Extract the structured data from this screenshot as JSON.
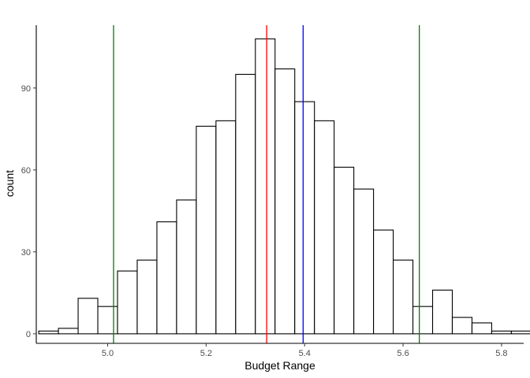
{
  "chart_data": {
    "type": "bar",
    "subtype": "histogram",
    "xlabel": "Budget Range",
    "ylabel": "count",
    "xlim": [
      4.855,
      5.845
    ],
    "ylim": [
      -3.5,
      113
    ],
    "xticks": [
      5.0,
      5.2,
      5.4,
      5.6,
      5.8
    ],
    "xtick_labels": [
      "5.0",
      "5.2",
      "5.4",
      "5.6",
      "5.8"
    ],
    "yticks": [
      0,
      30,
      60,
      90
    ],
    "ytick_labels": [
      "0",
      "30",
      "60",
      "90"
    ],
    "bin_width": 0.04,
    "bins": [
      {
        "x0": 4.86,
        "x1": 4.9,
        "count": 1
      },
      {
        "x0": 4.9,
        "x1": 4.94,
        "count": 2
      },
      {
        "x0": 4.94,
        "x1": 4.98,
        "count": 13
      },
      {
        "x0": 4.98,
        "x1": 5.02,
        "count": 10
      },
      {
        "x0": 5.02,
        "x1": 5.06,
        "count": 23
      },
      {
        "x0": 5.06,
        "x1": 5.1,
        "count": 27
      },
      {
        "x0": 5.1,
        "x1": 5.14,
        "count": 41
      },
      {
        "x0": 5.14,
        "x1": 5.18,
        "count": 49
      },
      {
        "x0": 5.18,
        "x1": 5.22,
        "count": 76
      },
      {
        "x0": 5.22,
        "x1": 5.26,
        "count": 78
      },
      {
        "x0": 5.26,
        "x1": 5.3,
        "count": 95
      },
      {
        "x0": 5.3,
        "x1": 5.34,
        "count": 108
      },
      {
        "x0": 5.34,
        "x1": 5.38,
        "count": 97
      },
      {
        "x0": 5.38,
        "x1": 5.42,
        "count": 85
      },
      {
        "x0": 5.42,
        "x1": 5.46,
        "count": 78
      },
      {
        "x0": 5.46,
        "x1": 5.5,
        "count": 61
      },
      {
        "x0": 5.5,
        "x1": 5.54,
        "count": 53
      },
      {
        "x0": 5.54,
        "x1": 5.58,
        "count": 38
      },
      {
        "x0": 5.58,
        "x1": 5.62,
        "count": 27
      },
      {
        "x0": 5.62,
        "x1": 5.66,
        "count": 10
      },
      {
        "x0": 5.66,
        "x1": 5.7,
        "count": 16
      },
      {
        "x0": 5.7,
        "x1": 5.74,
        "count": 6
      },
      {
        "x0": 5.74,
        "x1": 5.78,
        "count": 4
      },
      {
        "x0": 5.78,
        "x1": 5.82,
        "count": 1
      },
      {
        "x0": 5.82,
        "x1": 5.86,
        "count": 1
      }
    ],
    "vlines": [
      {
        "x": 5.012,
        "color": "#008000"
      },
      {
        "x": 5.323,
        "color": "#ff0000"
      },
      {
        "x": 5.397,
        "color": "#0000ff"
      },
      {
        "x": 5.633,
        "color": "#008000"
      }
    ],
    "bar_fill": "#ffffff",
    "bar_stroke": "#000000",
    "grid": false,
    "legend": "none"
  }
}
